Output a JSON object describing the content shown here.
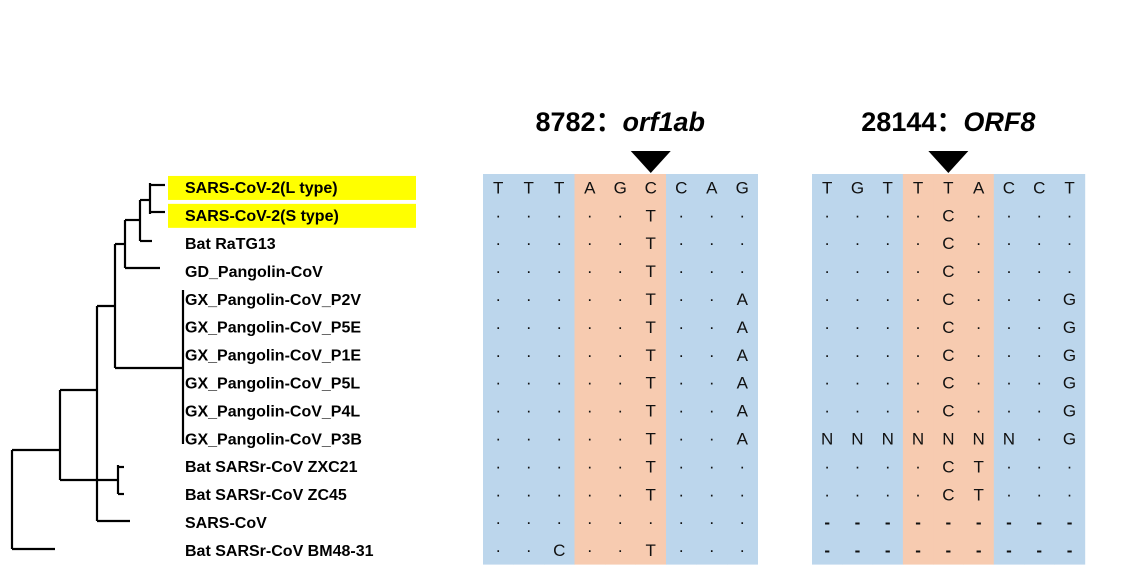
{
  "tree": {
    "taxa": [
      "SARS-CoV-2(L type)",
      "SARS-CoV-2(S type)",
      "Bat RaTG13",
      "GD_Pangolin-CoV",
      "GX_Pangolin-CoV_P2V",
      "GX_Pangolin-CoV_P5E",
      "GX_Pangolin-CoV_P1E",
      "GX_Pangolin-CoV_P5L",
      "GX_Pangolin-CoV_P4L",
      "GX_Pangolin-CoV_P3B",
      "Bat SARSr-CoV ZXC21",
      "Bat SARSr-CoV ZC45",
      "SARS-CoV",
      "Bat SARSr-CoV BM48-31"
    ]
  },
  "alignments": [
    {
      "position": "8782：",
      "gene": "orf1ab",
      "rows": [
        [
          "T",
          "T",
          "T",
          "A",
          "G",
          "C",
          "C",
          "A",
          "G"
        ],
        [
          ".",
          ".",
          ".",
          ".",
          ".",
          "T",
          ".",
          ".",
          "."
        ],
        [
          ".",
          ".",
          ".",
          ".",
          ".",
          "T",
          ".",
          ".",
          "."
        ],
        [
          ".",
          ".",
          ".",
          ".",
          ".",
          "T",
          ".",
          ".",
          "."
        ],
        [
          ".",
          ".",
          ".",
          ".",
          ".",
          "T",
          ".",
          ".",
          "A"
        ],
        [
          ".",
          ".",
          ".",
          ".",
          ".",
          "T",
          ".",
          ".",
          "A"
        ],
        [
          ".",
          ".",
          ".",
          ".",
          ".",
          "T",
          ".",
          ".",
          "A"
        ],
        [
          ".",
          ".",
          ".",
          ".",
          ".",
          "T",
          ".",
          ".",
          "A"
        ],
        [
          ".",
          ".",
          ".",
          ".",
          ".",
          "T",
          ".",
          ".",
          "A"
        ],
        [
          ".",
          ".",
          ".",
          ".",
          ".",
          "T",
          ".",
          ".",
          "A"
        ],
        [
          ".",
          ".",
          ".",
          ".",
          ".",
          "T",
          ".",
          ".",
          "."
        ],
        [
          ".",
          ".",
          ".",
          ".",
          ".",
          "T",
          ".",
          ".",
          "."
        ],
        [
          ".",
          ".",
          ".",
          ".",
          ".",
          ".",
          ".",
          ".",
          "."
        ],
        [
          ".",
          ".",
          "C",
          ".",
          ".",
          "T",
          ".",
          ".",
          "."
        ]
      ]
    },
    {
      "position": "28144：",
      "gene": "ORF8",
      "rows": [
        [
          "T",
          "G",
          "T",
          "T",
          "T",
          "A",
          "C",
          "C",
          "T"
        ],
        [
          ".",
          ".",
          ".",
          ".",
          "C",
          ".",
          ".",
          ".",
          "."
        ],
        [
          ".",
          ".",
          ".",
          ".",
          "C",
          ".",
          ".",
          ".",
          "."
        ],
        [
          ".",
          ".",
          ".",
          ".",
          "C",
          ".",
          ".",
          ".",
          "."
        ],
        [
          ".",
          ".",
          ".",
          ".",
          "C",
          ".",
          ".",
          ".",
          "G"
        ],
        [
          ".",
          ".",
          ".",
          ".",
          "C",
          ".",
          ".",
          ".",
          "G"
        ],
        [
          ".",
          ".",
          ".",
          ".",
          "C",
          ".",
          ".",
          ".",
          "G"
        ],
        [
          ".",
          ".",
          ".",
          ".",
          "C",
          ".",
          ".",
          ".",
          "G"
        ],
        [
          ".",
          ".",
          ".",
          ".",
          "C",
          ".",
          ".",
          ".",
          "G"
        ],
        [
          "N",
          "N",
          "N",
          "N",
          "N",
          "N",
          "N",
          ".",
          "G"
        ],
        [
          ".",
          ".",
          ".",
          ".",
          "C",
          "T",
          ".",
          ".",
          "."
        ],
        [
          ".",
          ".",
          ".",
          ".",
          "C",
          "T",
          ".",
          ".",
          "."
        ],
        [
          "-",
          "-",
          "-",
          "-",
          "-",
          "-",
          "-",
          "-",
          "-"
        ],
        [
          "-",
          "-",
          "-",
          "-",
          "-",
          "-",
          "-",
          "-",
          "-"
        ]
      ]
    }
  ]
}
